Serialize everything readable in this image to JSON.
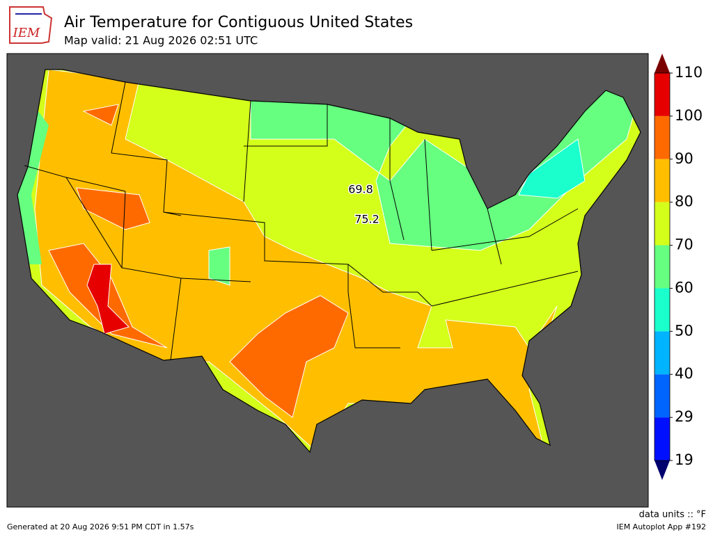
{
  "header": {
    "logo_text": "IEM",
    "title": "Air Temperature for Contiguous United States",
    "subtitle": "Map valid: 21 Aug 2026 02:51 UTC"
  },
  "station_labels": [
    69.8,
    75.2
  ],
  "colorbar": {
    "ticks": [
      110,
      100,
      90,
      80,
      70,
      60,
      50,
      40,
      29,
      19
    ],
    "colors": [
      "#e60000",
      "#ff6a00",
      "#ffbf00",
      "#d4ff1a",
      "#66ff80",
      "#1affcc",
      "#00b4ff",
      "#0064ff",
      "#0010ff"
    ],
    "over_color": "#7a0000",
    "under_color": "#00006e"
  },
  "footer": {
    "units": "data units :: °F",
    "generated": "Generated at 20 Aug 2026 9:51 PM CDT in 1.57s",
    "app": "IEM Autoplot App #192"
  }
}
